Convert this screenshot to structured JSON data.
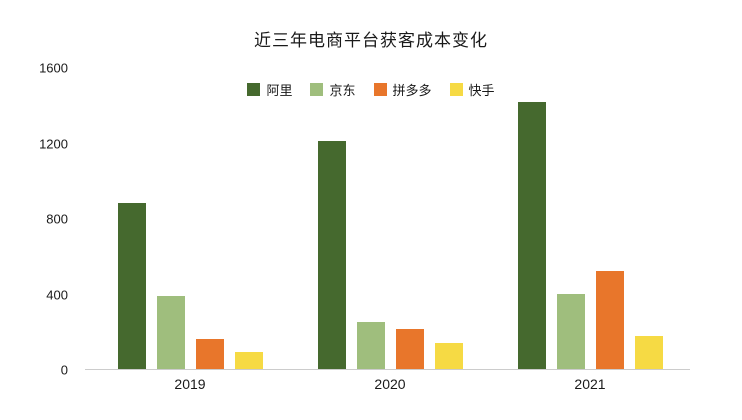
{
  "chart_data": {
    "type": "bar",
    "title": "近三年电商平台获客成本变化",
    "categories": [
      "2019",
      "2020",
      "2021"
    ],
    "series": [
      {
        "name": "阿里",
        "color": "#45692e",
        "values": [
          880,
          1210,
          1420
        ]
      },
      {
        "name": "京东",
        "color": "#9fbe7d",
        "values": [
          390,
          250,
          400
        ]
      },
      {
        "name": "拼多多",
        "color": "#e8762b",
        "values": [
          160,
          215,
          520
        ]
      },
      {
        "name": "快手",
        "color": "#f6da44",
        "values": [
          90,
          140,
          175
        ]
      }
    ],
    "xlabel": "",
    "ylabel": "",
    "ylim": [
      0,
      1600
    ],
    "yticks": [
      0,
      400,
      800,
      1200,
      1600
    ],
    "legend_position": "top-center",
    "grid": false,
    "background_color": "#ffffff",
    "axis_line_color": "#cccccc"
  }
}
